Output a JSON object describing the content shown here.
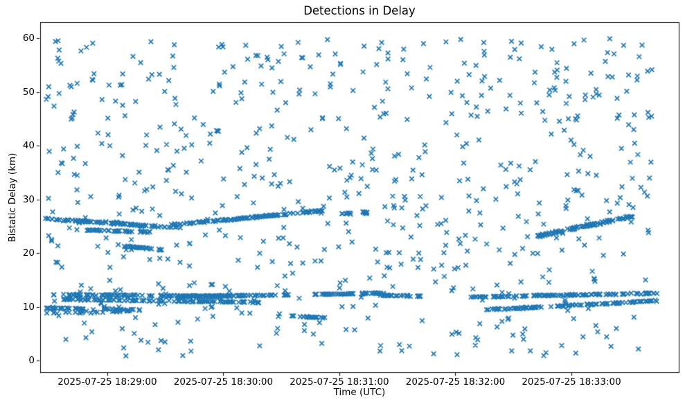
{
  "figure": {
    "background": "#ffffff",
    "axes_edge_color": "#000000",
    "tick_color": "#000000"
  },
  "chart_data": {
    "type": "scatter",
    "title": "Detections in Delay",
    "xlabel": "Time (UTC)",
    "ylabel": "Bistatic Delay (km)",
    "marker": "x",
    "marker_color": "#1f77b4",
    "marker_size_px": 6.5,
    "marker_line_width": 1.7,
    "grid": false,
    "legend": "none",
    "time_origin": "2025-07-25 18:29:00",
    "x_tick_seconds": [
      0,
      60,
      120,
      180,
      240
    ],
    "x_tick_labels": [
      "2025-07-25 18:29:00",
      "2025-07-25 18:30:00",
      "2025-07-25 18:31:00",
      "2025-07-25 18:32:00",
      "2025-07-25 18:33:00"
    ],
    "y_ticks": [
      0,
      10,
      20,
      30,
      40,
      50,
      60
    ],
    "xlim_seconds": [
      -34.7,
      295.5
    ],
    "ylim": [
      -2.2,
      63.0
    ],
    "seed": 42,
    "tracks": [
      {
        "name": "track-26km-a",
        "t": [
          -32,
          37
        ],
        "d": [
          26.4,
          24.7
        ],
        "n": 95,
        "jitter": 0.18
      },
      {
        "name": "track-24km",
        "t": [
          -11,
          22
        ],
        "d": [
          24.3,
          23.9
        ],
        "n": 42,
        "jitter": 0.15
      },
      {
        "name": "track-26km-b",
        "t": [
          32,
          112
        ],
        "d": [
          25.2,
          27.9
        ],
        "n": 120,
        "jitter": 0.18
      },
      {
        "name": "track-27km-tail",
        "t": [
          120,
          135
        ],
        "d": [
          27.2,
          27.6
        ],
        "n": 14,
        "jitter": 0.25
      },
      {
        "name": "track-21km",
        "t": [
          9,
          28
        ],
        "d": [
          21.3,
          20.6
        ],
        "n": 30,
        "jitter": 0.12
      },
      {
        "name": "track-23-27km-right",
        "t": [
          222,
          272
        ],
        "d": [
          23.1,
          26.9
        ],
        "n": 95,
        "jitter": 0.18
      },
      {
        "name": "track-12km-a",
        "t": [
          -27,
          62
        ],
        "d": [
          12.3,
          11.9
        ],
        "n": 95,
        "jitter": 0.15
      },
      {
        "name": "track-11km",
        "t": [
          -25,
          80
        ],
        "d": [
          11.4,
          10.8
        ],
        "n": 115,
        "jitter": 0.18
      },
      {
        "name": "track-10km",
        "t": [
          -32,
          16
        ],
        "d": [
          9.8,
          9.4
        ],
        "n": 48,
        "jitter": 0.2
      },
      {
        "name": "cluster-9km",
        "t": [
          -30,
          12
        ],
        "d": [
          8.8,
          9.1
        ],
        "n": 26,
        "jitter": 0.35
      },
      {
        "name": "track-8km",
        "t": [
          95,
          113
        ],
        "d": [
          8.3,
          7.9
        ],
        "n": 24,
        "jitter": 0.12
      },
      {
        "name": "track-12km-b",
        "t": [
          36,
          95
        ],
        "d": [
          11.9,
          12.2
        ],
        "n": 85,
        "jitter": 0.15
      },
      {
        "name": "track-12km-c",
        "t": [
          107,
          128
        ],
        "d": [
          12.3,
          12.4
        ],
        "n": 30,
        "jitter": 0.1
      },
      {
        "name": "track-12km-d",
        "t": [
          131,
          143
        ],
        "d": [
          12.5,
          12.5
        ],
        "n": 22,
        "jitter": 0.1
      },
      {
        "name": "track-12km-e",
        "t": [
          142,
          163
        ],
        "d": [
          12.1,
          12.0
        ],
        "n": 30,
        "jitter": 0.12
      },
      {
        "name": "track-12km-right",
        "t": [
          186,
          283
        ],
        "d": [
          11.8,
          12.5
        ],
        "n": 115,
        "jitter": 0.15
      },
      {
        "name": "track-9-11km-right",
        "t": [
          196,
          284
        ],
        "d": [
          9.4,
          11.1
        ],
        "n": 100,
        "jitter": 0.18
      }
    ],
    "clutter": [
      {
        "name": "clutter-high",
        "n": 390,
        "t": [
          -32,
          282
        ],
        "d": [
          28.0,
          60.0
        ]
      },
      {
        "name": "clutter-mid",
        "n": 150,
        "t": [
          -32,
          282
        ],
        "d": [
          14.0,
          28.0
        ]
      },
      {
        "name": "clutter-low",
        "n": 125,
        "t": [
          -32,
          282
        ],
        "d": [
          0.8,
          14.0
        ]
      }
    ]
  }
}
